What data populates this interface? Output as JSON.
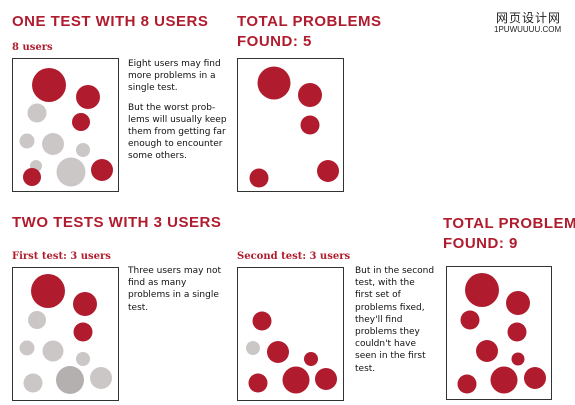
{
  "watermark": {
    "title": "网页设计网",
    "url": "1PUWUUUU.COM"
  },
  "colors": {
    "red": "#b01c2e",
    "gray": "#cbc7c7",
    "dark_gray": "#b4b0b0"
  },
  "top": {
    "heading": "ONE TEST WITH 8 USERS",
    "label": "8 users",
    "text": [
      "Eight users may find more problems in a single test.",
      "But the worst prob-lems will usually keep them from getting far enough to encounter some others."
    ],
    "total": {
      "line1": "TOTAL PROBLEMS",
      "line2": "FOUND: 5"
    }
  },
  "bottom": {
    "heading": "TWO TESTS WITH 3 USERS",
    "first": {
      "label": "First test: 3 users",
      "text": "Three users may not find as many problems in a single test."
    },
    "second": {
      "label": "Second test: 3 users",
      "text": "But in the second test, with the first set of problems fixed, they'll find problems they couldn't have seen in the first test."
    },
    "total": {
      "line1": "TOTAL PROBLEMS",
      "line2": "FOUND: 9"
    }
  }
}
